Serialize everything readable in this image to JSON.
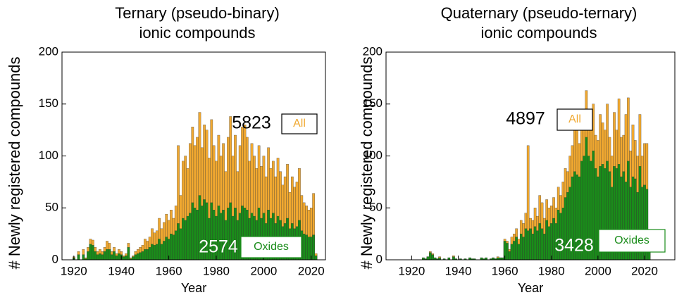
{
  "chart_data": [
    {
      "type": "bar",
      "title": [
        "Ternary (pseudo-binary)",
        "ionic compounds"
      ],
      "x_label": "Year",
      "y_label": "# Newly registered compounds",
      "xlim": [
        1915,
        2026
      ],
      "xticks": [
        1920,
        1940,
        1960,
        1980,
        2000,
        2020
      ],
      "ylim": [
        0,
        200
      ],
      "yticks": [
        0,
        50,
        100,
        150,
        200
      ],
      "x": [
        1920,
        1921,
        1922,
        1923,
        1924,
        1925,
        1926,
        1927,
        1928,
        1929,
        1930,
        1931,
        1932,
        1933,
        1934,
        1935,
        1936,
        1937,
        1938,
        1939,
        1940,
        1941,
        1942,
        1943,
        1944,
        1945,
        1946,
        1947,
        1948,
        1949,
        1950,
        1951,
        1952,
        1953,
        1954,
        1955,
        1956,
        1957,
        1958,
        1959,
        1960,
        1961,
        1962,
        1963,
        1964,
        1965,
        1966,
        1967,
        1968,
        1969,
        1970,
        1971,
        1972,
        1973,
        1974,
        1975,
        1976,
        1977,
        1978,
        1979,
        1980,
        1981,
        1982,
        1983,
        1984,
        1985,
        1986,
        1987,
        1988,
        1989,
        1990,
        1991,
        1992,
        1993,
        1994,
        1995,
        1996,
        1997,
        1998,
        1999,
        2000,
        2001,
        2002,
        2003,
        2004,
        2005,
        2006,
        2007,
        2008,
        2009,
        2010,
        2011,
        2012,
        2013,
        2014,
        2015,
        2016,
        2017,
        2018,
        2019,
        2020,
        2021,
        2022
      ],
      "series": [
        {
          "name": "All",
          "total": 5823,
          "color": "#f0a830",
          "values": [
            3,
            0,
            8,
            0,
            10,
            2,
            12,
            20,
            19,
            12,
            8,
            10,
            8,
            12,
            18,
            16,
            8,
            12,
            6,
            10,
            8,
            4,
            6,
            16,
            2,
            4,
            8,
            10,
            12,
            14,
            20,
            18,
            22,
            30,
            26,
            28,
            40,
            30,
            36,
            44,
            38,
            48,
            40,
            52,
            110,
            62,
            95,
            100,
            88,
            112,
            128,
            110,
            118,
            142,
            108,
            130,
            125,
            98,
            135,
            110,
            95,
            120,
            100,
            112,
            85,
            118,
            138,
            100,
            120,
            85,
            110,
            128,
            130,
            118,
            95,
            112,
            100,
            88,
            110,
            90,
            100,
            80,
            108,
            88,
            95,
            80,
            98,
            85,
            72,
            80,
            92,
            65,
            80,
            70,
            75,
            88,
            62,
            55,
            52,
            48,
            50,
            64,
            6
          ]
        },
        {
          "name": "Oxides",
          "total": 2574,
          "color": "#1a8c1a",
          "values": [
            2,
            0,
            5,
            0,
            5,
            1,
            8,
            15,
            14,
            8,
            5,
            6,
            5,
            8,
            10,
            10,
            5,
            8,
            4,
            6,
            5,
            3,
            4,
            12,
            1,
            3,
            5,
            6,
            7,
            8,
            10,
            10,
            12,
            15,
            14,
            15,
            20,
            15,
            18,
            22,
            20,
            25,
            24,
            28,
            35,
            30,
            40,
            38,
            42,
            45,
            55,
            50,
            48,
            62,
            52,
            58,
            55,
            40,
            55,
            48,
            42,
            52,
            45,
            48,
            38,
            50,
            55,
            42,
            50,
            38,
            45,
            52,
            50,
            48,
            40,
            45,
            42,
            38,
            50,
            40,
            45,
            35,
            48,
            40,
            45,
            35,
            42,
            38,
            32,
            35,
            40,
            30,
            35,
            30,
            32,
            38,
            28,
            25,
            24,
            22,
            22,
            24,
            4
          ]
        }
      ]
    },
    {
      "type": "bar",
      "title": [
        "Quaternary (pseudo-ternary)",
        "ionic compounds"
      ],
      "x_label": "Year",
      "y_label": "# Newly registered compounds",
      "xlim": [
        1909,
        2033
      ],
      "xticks": [
        1920,
        1940,
        1960,
        1980,
        2000,
        2020
      ],
      "ylim": [
        0,
        200
      ],
      "yticks": [
        0,
        50,
        100,
        150,
        200
      ],
      "x": [
        1920,
        1921,
        1922,
        1923,
        1924,
        1925,
        1926,
        1927,
        1928,
        1929,
        1930,
        1931,
        1932,
        1933,
        1934,
        1935,
        1936,
        1937,
        1938,
        1939,
        1940,
        1941,
        1942,
        1943,
        1944,
        1945,
        1946,
        1947,
        1948,
        1949,
        1950,
        1951,
        1952,
        1953,
        1954,
        1955,
        1956,
        1957,
        1958,
        1959,
        1960,
        1961,
        1962,
        1963,
        1964,
        1965,
        1966,
        1967,
        1968,
        1969,
        1970,
        1971,
        1972,
        1973,
        1974,
        1975,
        1976,
        1977,
        1978,
        1979,
        1980,
        1981,
        1982,
        1983,
        1984,
        1985,
        1986,
        1987,
        1988,
        1989,
        1990,
        1991,
        1992,
        1993,
        1994,
        1995,
        1996,
        1997,
        1998,
        1999,
        2000,
        2001,
        2002,
        2003,
        2004,
        2005,
        2006,
        2007,
        2008,
        2009,
        2010,
        2011,
        2012,
        2013,
        2014,
        2015,
        2016,
        2017,
        2018,
        2019,
        2020,
        2021,
        2022
      ],
      "series": [
        {
          "name": "All",
          "total": 4897,
          "color": "#f0a830",
          "values": [
            0,
            0,
            0,
            0,
            0,
            2,
            1,
            3,
            8,
            6,
            2,
            1,
            3,
            0,
            1,
            0,
            2,
            0,
            4,
            1,
            0,
            1,
            0,
            1,
            0,
            2,
            1,
            1,
            0,
            0,
            2,
            1,
            2,
            0,
            1,
            2,
            1,
            3,
            2,
            2,
            20,
            18,
            10,
            22,
            25,
            30,
            20,
            38,
            35,
            45,
            110,
            40,
            38,
            50,
            42,
            62,
            55,
            40,
            58,
            50,
            52,
            60,
            50,
            70,
            62,
            75,
            88,
            85,
            100,
            110,
            125,
            132,
            112,
            145,
            130,
            163,
            125,
            140,
            150,
            120,
            115,
            140,
            132,
            125,
            150,
            118,
            100,
            142,
            125,
            155,
            118,
            120,
            140,
            156,
            105,
            130,
            115,
            100,
            140,
            100,
            112,
            112,
            16
          ]
        },
        {
          "name": "Oxides",
          "total": 3428,
          "color": "#1a8c1a",
          "values": [
            0,
            0,
            0,
            0,
            0,
            2,
            1,
            3,
            7,
            5,
            2,
            1,
            2,
            0,
            1,
            0,
            2,
            0,
            3,
            1,
            0,
            1,
            0,
            1,
            0,
            2,
            1,
            1,
            0,
            0,
            2,
            1,
            2,
            0,
            1,
            2,
            1,
            2,
            2,
            2,
            18,
            16,
            8,
            15,
            18,
            22,
            15,
            25,
            22,
            30,
            28,
            30,
            25,
            32,
            28,
            35,
            30,
            25,
            38,
            32,
            35,
            40,
            35,
            48,
            45,
            50,
            60,
            65,
            70,
            80,
            85,
            82,
            80,
            95,
            100,
            118,
            100,
            95,
            105,
            88,
            80,
            90,
            92,
            88,
            95,
            85,
            70,
            90,
            88,
            92,
            80,
            85,
            75,
            95,
            70,
            80,
            78,
            65,
            90,
            70,
            72,
            68,
            14
          ]
        }
      ]
    }
  ]
}
